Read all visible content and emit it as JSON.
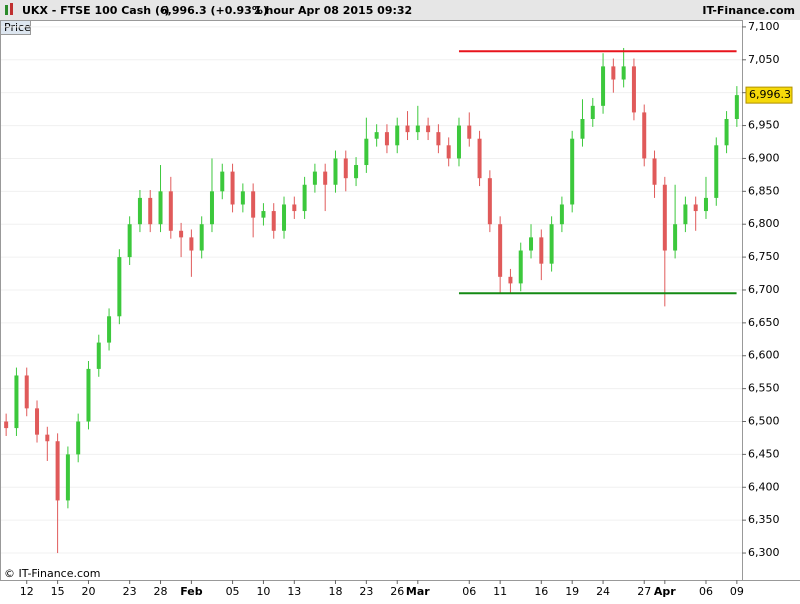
{
  "header": {
    "symbol": "UKX - FTSE 100 Cash (-)",
    "quote": "6,996.3 (+0.93%)",
    "period": "1 hour  Apr 08 2015 09:32",
    "brand": "IT-Finance.com"
  },
  "chart_data": {
    "type": "candlestick",
    "label": "Price",
    "footer": "© IT-Finance.com",
    "categories": [
      null,
      null,
      "12",
      null,
      null,
      "15",
      null,
      null,
      "20",
      null,
      null,
      null,
      "23",
      null,
      null,
      "28",
      null,
      null,
      "Feb",
      null,
      null,
      null,
      "05",
      null,
      null,
      "10",
      null,
      null,
      "13",
      null,
      null,
      null,
      "18",
      null,
      null,
      "23",
      null,
      null,
      "26",
      null,
      "Mar",
      null,
      null,
      null,
      null,
      "06",
      null,
      null,
      "11",
      null,
      null,
      null,
      "16",
      null,
      null,
      "19",
      null,
      null,
      "24",
      null,
      null,
      null,
      "27",
      null,
      "Apr",
      null,
      null,
      null,
      "06",
      null,
      null,
      "09"
    ],
    "open": [
      6500,
      6490,
      6570,
      6520,
      6480,
      6470,
      6380,
      6450,
      6500,
      6580,
      6620,
      6660,
      6750,
      6800,
      6840,
      6800,
      6850,
      6790,
      6780,
      6760,
      6800,
      6850,
      6880,
      6830,
      6850,
      6810,
      6820,
      6790,
      6830,
      6820,
      6860,
      6880,
      6860,
      6900,
      6870,
      6890,
      6930,
      6940,
      6920,
      6950,
      6940,
      6950,
      6940,
      6920,
      6900,
      6950,
      6930,
      6870,
      6800,
      6720,
      6710,
      6760,
      6780,
      6740,
      6800,
      6830,
      6930,
      6960,
      6980,
      7040,
      7020,
      7040,
      6970,
      6900,
      6860,
      6760,
      6800,
      6830,
      6820,
      6840,
      6920,
      6960
    ],
    "high": [
      6512,
      6582,
      6582,
      6532,
      6492,
      6482,
      6462,
      6512,
      6592,
      6632,
      6672,
      6762,
      6812,
      6852,
      6852,
      6890,
      6872,
      6802,
      6792,
      6812,
      6900,
      6892,
      6892,
      6862,
      6862,
      6832,
      6832,
      6842,
      6842,
      6872,
      6892,
      6892,
      6912,
      6912,
      6902,
      6962,
      6952,
      6952,
      6962,
      6972,
      6980,
      6962,
      6952,
      6932,
      6962,
      6970,
      6942,
      6882,
      6812,
      6732,
      6772,
      6800,
      6792,
      6812,
      6842,
      6942,
      6990,
      6992,
      7060,
      7052,
      7068,
      7052,
      6982,
      6912,
      6872,
      6860,
      6842,
      6842,
      6872,
      6932,
      6972,
      7010
    ],
    "low": [
      6478,
      6478,
      6508,
      6468,
      6440,
      6300,
      6368,
      6438,
      6488,
      6568,
      6608,
      6648,
      6738,
      6788,
      6788,
      6788,
      6778,
      6750,
      6720,
      6748,
      6788,
      6838,
      6818,
      6818,
      6780,
      6798,
      6778,
      6778,
      6808,
      6808,
      6848,
      6820,
      6848,
      6850,
      6858,
      6878,
      6918,
      6908,
      6908,
      6928,
      6928,
      6928,
      6908,
      6888,
      6888,
      6918,
      6858,
      6788,
      6695,
      6695,
      6698,
      6748,
      6715,
      6728,
      6788,
      6818,
      6918,
      6948,
      6968,
      7000,
      7008,
      6958,
      6888,
      6840,
      6675,
      6748,
      6788,
      6790,
      6808,
      6828,
      6908,
      6948
    ],
    "close": [
      6490,
      6570,
      6520,
      6480,
      6470,
      6380,
      6450,
      6500,
      6580,
      6620,
      6660,
      6750,
      6800,
      6840,
      6800,
      6850,
      6790,
      6780,
      6760,
      6800,
      6850,
      6880,
      6830,
      6850,
      6810,
      6820,
      6790,
      6830,
      6820,
      6860,
      6880,
      6860,
      6900,
      6870,
      6890,
      6930,
      6940,
      6920,
      6950,
      6940,
      6950,
      6940,
      6920,
      6900,
      6950,
      6930,
      6870,
      6800,
      6720,
      6710,
      6760,
      6780,
      6740,
      6800,
      6830,
      6930,
      6960,
      6980,
      7040,
      7020,
      7040,
      6970,
      6900,
      6860,
      6760,
      6800,
      6830,
      6820,
      6840,
      6920,
      6960,
      6996.3
    ],
    "up_color": "#3cc83c",
    "down_color": "#e05a5a",
    "last": {
      "value": 6996.3,
      "label": "6,996.3"
    },
    "levels": [
      {
        "value": 7063,
        "color": "#e8141c"
      },
      {
        "value": 6695,
        "color": "#138a13"
      }
    ],
    "ylim": [
      6259,
      7109
    ],
    "yticks": [
      {
        "value": 6300,
        "label": "6,300"
      },
      {
        "value": 6350,
        "label": "6,350"
      },
      {
        "value": 6400,
        "label": "6,400"
      },
      {
        "value": 6450,
        "label": "6,450"
      },
      {
        "value": 6500,
        "label": "6,500"
      },
      {
        "value": 6550,
        "label": "6,550"
      },
      {
        "value": 6600,
        "label": "6,600"
      },
      {
        "value": 6650,
        "label": "6,650"
      },
      {
        "value": 6700,
        "label": "6,700"
      },
      {
        "value": 6750,
        "label": "6,750"
      },
      {
        "value": 6800,
        "label": "6,800"
      },
      {
        "value": 6850,
        "label": "6,850"
      },
      {
        "value": 6900,
        "label": "6,900"
      },
      {
        "value": 6950,
        "label": "6,950"
      },
      {
        "value": 7000,
        "label": "7,000"
      },
      {
        "value": 7050,
        "label": "7,050"
      },
      {
        "value": 7100,
        "label": "7,100"
      }
    ],
    "grid": true
  }
}
